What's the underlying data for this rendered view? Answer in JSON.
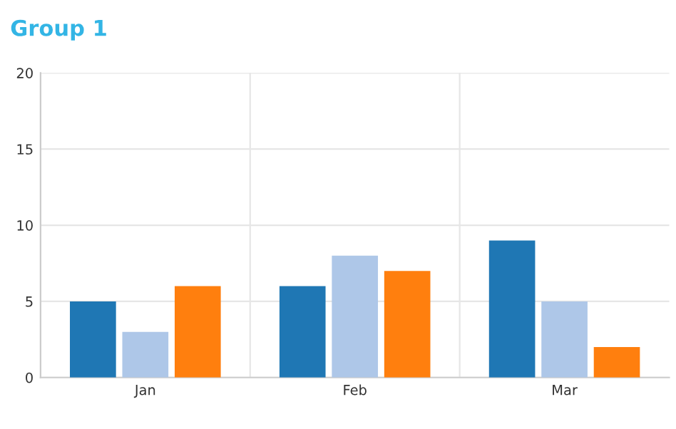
{
  "chart_data": {
    "type": "bar",
    "title": "Group 1",
    "categories": [
      "Jan",
      "Feb",
      "Mar"
    ],
    "series": [
      {
        "color": "#1f77b4",
        "values": [
          5,
          6,
          9
        ]
      },
      {
        "color": "#aec7e8",
        "values": [
          3,
          8,
          5
        ]
      },
      {
        "color": "#ff7f0e",
        "values": [
          6,
          7,
          2
        ]
      }
    ],
    "ylim": [
      0,
      20
    ],
    "yticks": [
      0,
      5,
      10,
      15,
      20
    ],
    "grid": true,
    "legend": false
  }
}
